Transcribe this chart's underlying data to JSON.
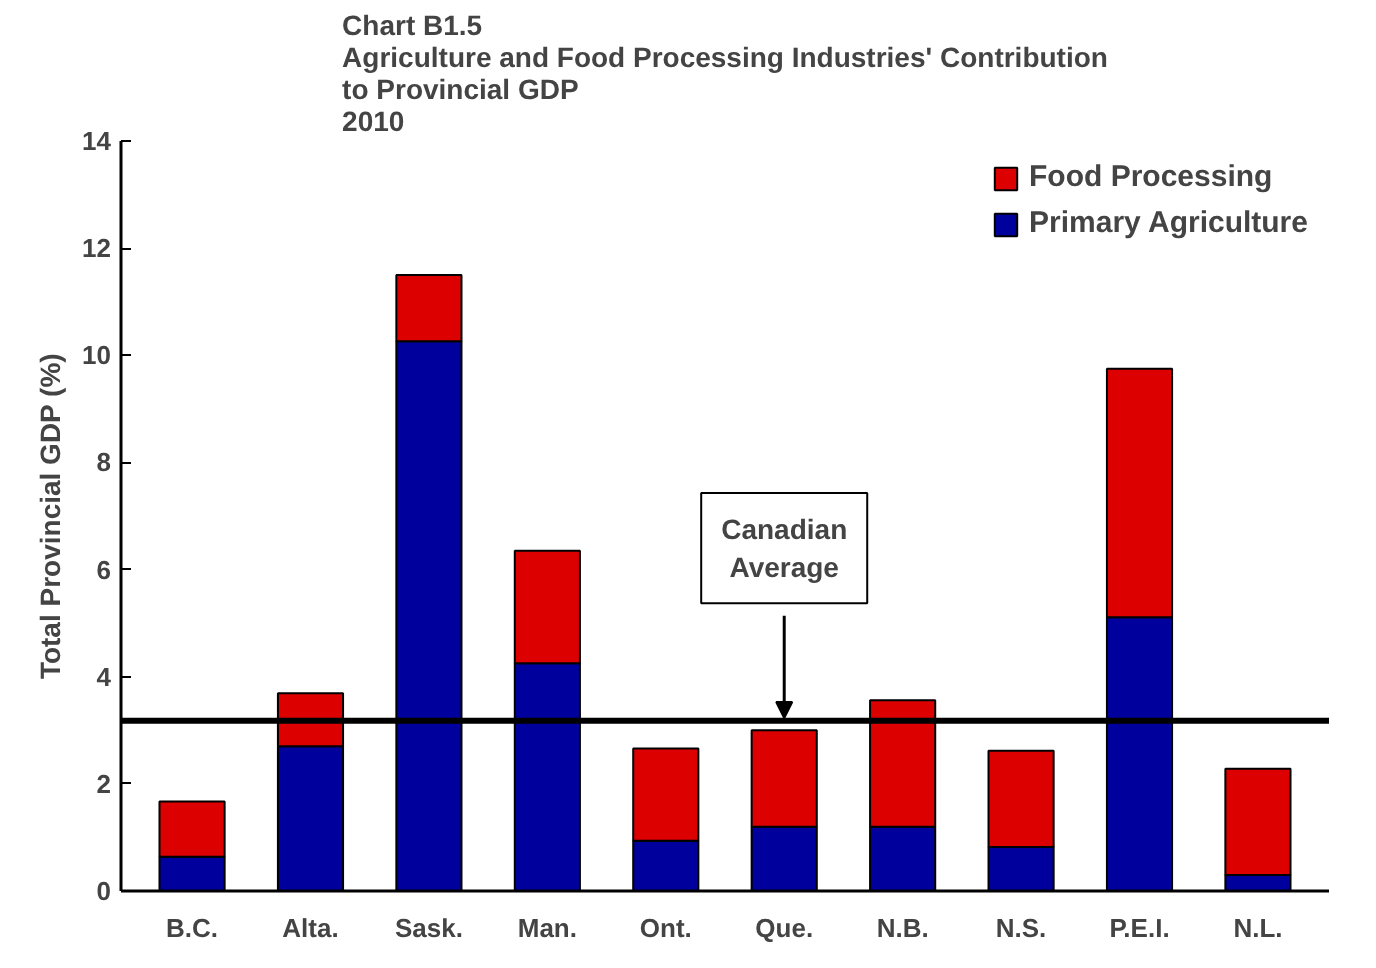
{
  "chart_data": {
    "type": "bar",
    "stacked": true,
    "title": "Chart B1.5\nAgriculture and Food Processing Industries' Contribution\nto Provincial GDP\n2010",
    "ylabel": "Total Provincial GDP (%)",
    "categories": [
      "B.C.",
      "Alta.",
      "Sask.",
      "Man.",
      "Ont.",
      "Que.",
      "N.B.",
      "N.S.",
      "P.E.I.",
      "N.L."
    ],
    "series": [
      {
        "name": "Primary Agriculture",
        "color": "#00009c",
        "values": [
          0.64,
          2.7,
          10.26,
          4.25,
          0.94,
          1.2,
          1.2,
          0.82,
          5.11,
          0.3
        ]
      },
      {
        "name": "Food Processing",
        "color": "#dd0000",
        "values": [
          1.03,
          0.99,
          1.24,
          2.1,
          1.72,
          1.8,
          2.36,
          1.8,
          4.64,
          1.98
        ]
      }
    ],
    "ylim": [
      0,
      14
    ],
    "yticks": [
      0,
      2,
      4,
      6,
      8,
      10,
      12,
      14
    ],
    "grid": false,
    "legend": "top right",
    "ref_lines": [
      {
        "axis": "y",
        "value": 3.18,
        "label": "Canadian Average",
        "color": "#000000",
        "line_style": "solid"
      }
    ]
  }
}
